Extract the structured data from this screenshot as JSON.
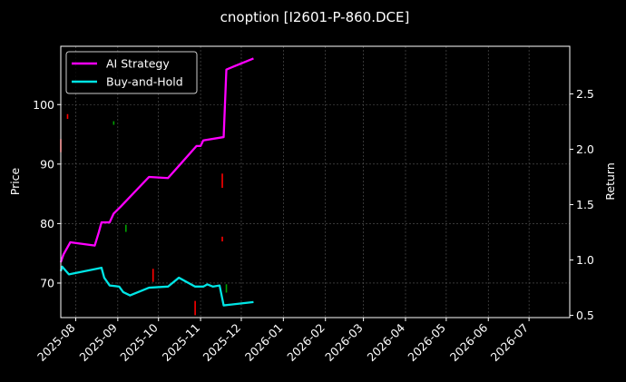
{
  "chart_data": {
    "type": "line",
    "title": "cnoption [I2601-P-860.DCE]",
    "ylabel_left": "Price",
    "ylabel_right": "Return",
    "ylim_left": [
      64.2,
      109.8
    ],
    "ylim_right": [
      0.48,
      2.93
    ],
    "xlim": [
      "2025-07-21",
      "2026-07-31"
    ],
    "grid": true,
    "legend_position": "top-left",
    "x_ticks": [
      "2025-08",
      "2025-09",
      "2025-10",
      "2025-11",
      "2025-12",
      "2026-01",
      "2026-02",
      "2026-03",
      "2026-04",
      "2026-05",
      "2026-06",
      "2026-07"
    ],
    "x_tick_dates": [
      "2025-08-01",
      "2025-09-01",
      "2025-10-01",
      "2025-11-01",
      "2025-12-01",
      "2026-01-01",
      "2026-02-01",
      "2026-03-01",
      "2026-04-01",
      "2026-05-01",
      "2026-06-01",
      "2026-07-01"
    ],
    "y_ticks_left": [
      70,
      80,
      90,
      100
    ],
    "y_ticks_right": [
      0.5,
      1.0,
      1.5,
      2.0,
      2.5
    ],
    "series": [
      {
        "name": "AI Strategy",
        "axis": "right",
        "color": "#ff00ff",
        "points": [
          [
            "2025-07-21",
            0.98
          ],
          [
            "2025-07-23",
            1.05
          ],
          [
            "2025-07-28",
            1.16
          ],
          [
            "2025-08-15",
            1.13
          ],
          [
            "2025-08-18",
            1.25
          ],
          [
            "2025-08-20",
            1.34
          ],
          [
            "2025-08-26",
            1.34
          ],
          [
            "2025-08-29",
            1.42
          ],
          [
            "2025-09-03",
            1.48
          ],
          [
            "2025-09-24",
            1.75
          ],
          [
            "2025-10-08",
            1.74
          ],
          [
            "2025-10-16",
            1.85
          ],
          [
            "2025-10-29",
            2.03
          ],
          [
            "2025-11-01",
            2.03
          ],
          [
            "2025-11-03",
            2.08
          ],
          [
            "2025-11-18",
            2.11
          ],
          [
            "2025-11-20",
            2.72
          ],
          [
            "2025-12-10",
            2.82
          ]
        ]
      },
      {
        "name": "Buy-and-Hold",
        "axis": "right",
        "color": "#00e5e5",
        "points": [
          [
            "2025-07-21",
            0.9
          ],
          [
            "2025-07-22",
            0.94
          ],
          [
            "2025-07-27",
            0.87
          ],
          [
            "2025-08-20",
            0.93
          ],
          [
            "2025-08-22",
            0.84
          ],
          [
            "2025-08-26",
            0.77
          ],
          [
            "2025-09-02",
            0.76
          ],
          [
            "2025-09-05",
            0.71
          ],
          [
            "2025-09-10",
            0.68
          ],
          [
            "2025-09-24",
            0.75
          ],
          [
            "2025-10-08",
            0.76
          ],
          [
            "2025-10-16",
            0.84
          ],
          [
            "2025-10-28",
            0.76
          ],
          [
            "2025-11-03",
            0.76
          ],
          [
            "2025-11-06",
            0.78
          ],
          [
            "2025-11-10",
            0.76
          ],
          [
            "2025-11-15",
            0.77
          ],
          [
            "2025-11-18",
            0.59
          ],
          [
            "2025-12-10",
            0.62
          ]
        ]
      }
    ],
    "candles": [
      {
        "date": "2025-07-21",
        "low": 92.0,
        "high": 94.2,
        "color": "#ff0000"
      },
      {
        "date": "2025-07-26",
        "low": 97.6,
        "high": 98.4,
        "color": "#ff0000"
      },
      {
        "date": "2025-08-29",
        "low": 96.6,
        "high": 97.2,
        "color": "#00a000"
      },
      {
        "date": "2025-09-07",
        "low": 78.6,
        "high": 79.8,
        "color": "#00a000"
      },
      {
        "date": "2025-09-27",
        "low": 70.2,
        "high": 72.4,
        "color": "#ff0000"
      },
      {
        "date": "2025-10-28",
        "low": 64.6,
        "high": 67.0,
        "color": "#ff0000"
      },
      {
        "date": "2025-11-17",
        "low": 86.0,
        "high": 88.4,
        "color": "#ff0000"
      },
      {
        "date": "2025-11-17",
        "low": 77.0,
        "high": 77.8,
        "color": "#ff0000"
      },
      {
        "date": "2025-11-20",
        "low": 68.4,
        "high": 69.8,
        "color": "#00a000"
      }
    ]
  },
  "legend": {
    "items": [
      {
        "label": "AI Strategy",
        "color": "#ff00ff"
      },
      {
        "label": "Buy-and-Hold",
        "color": "#00e5e5"
      }
    ]
  }
}
